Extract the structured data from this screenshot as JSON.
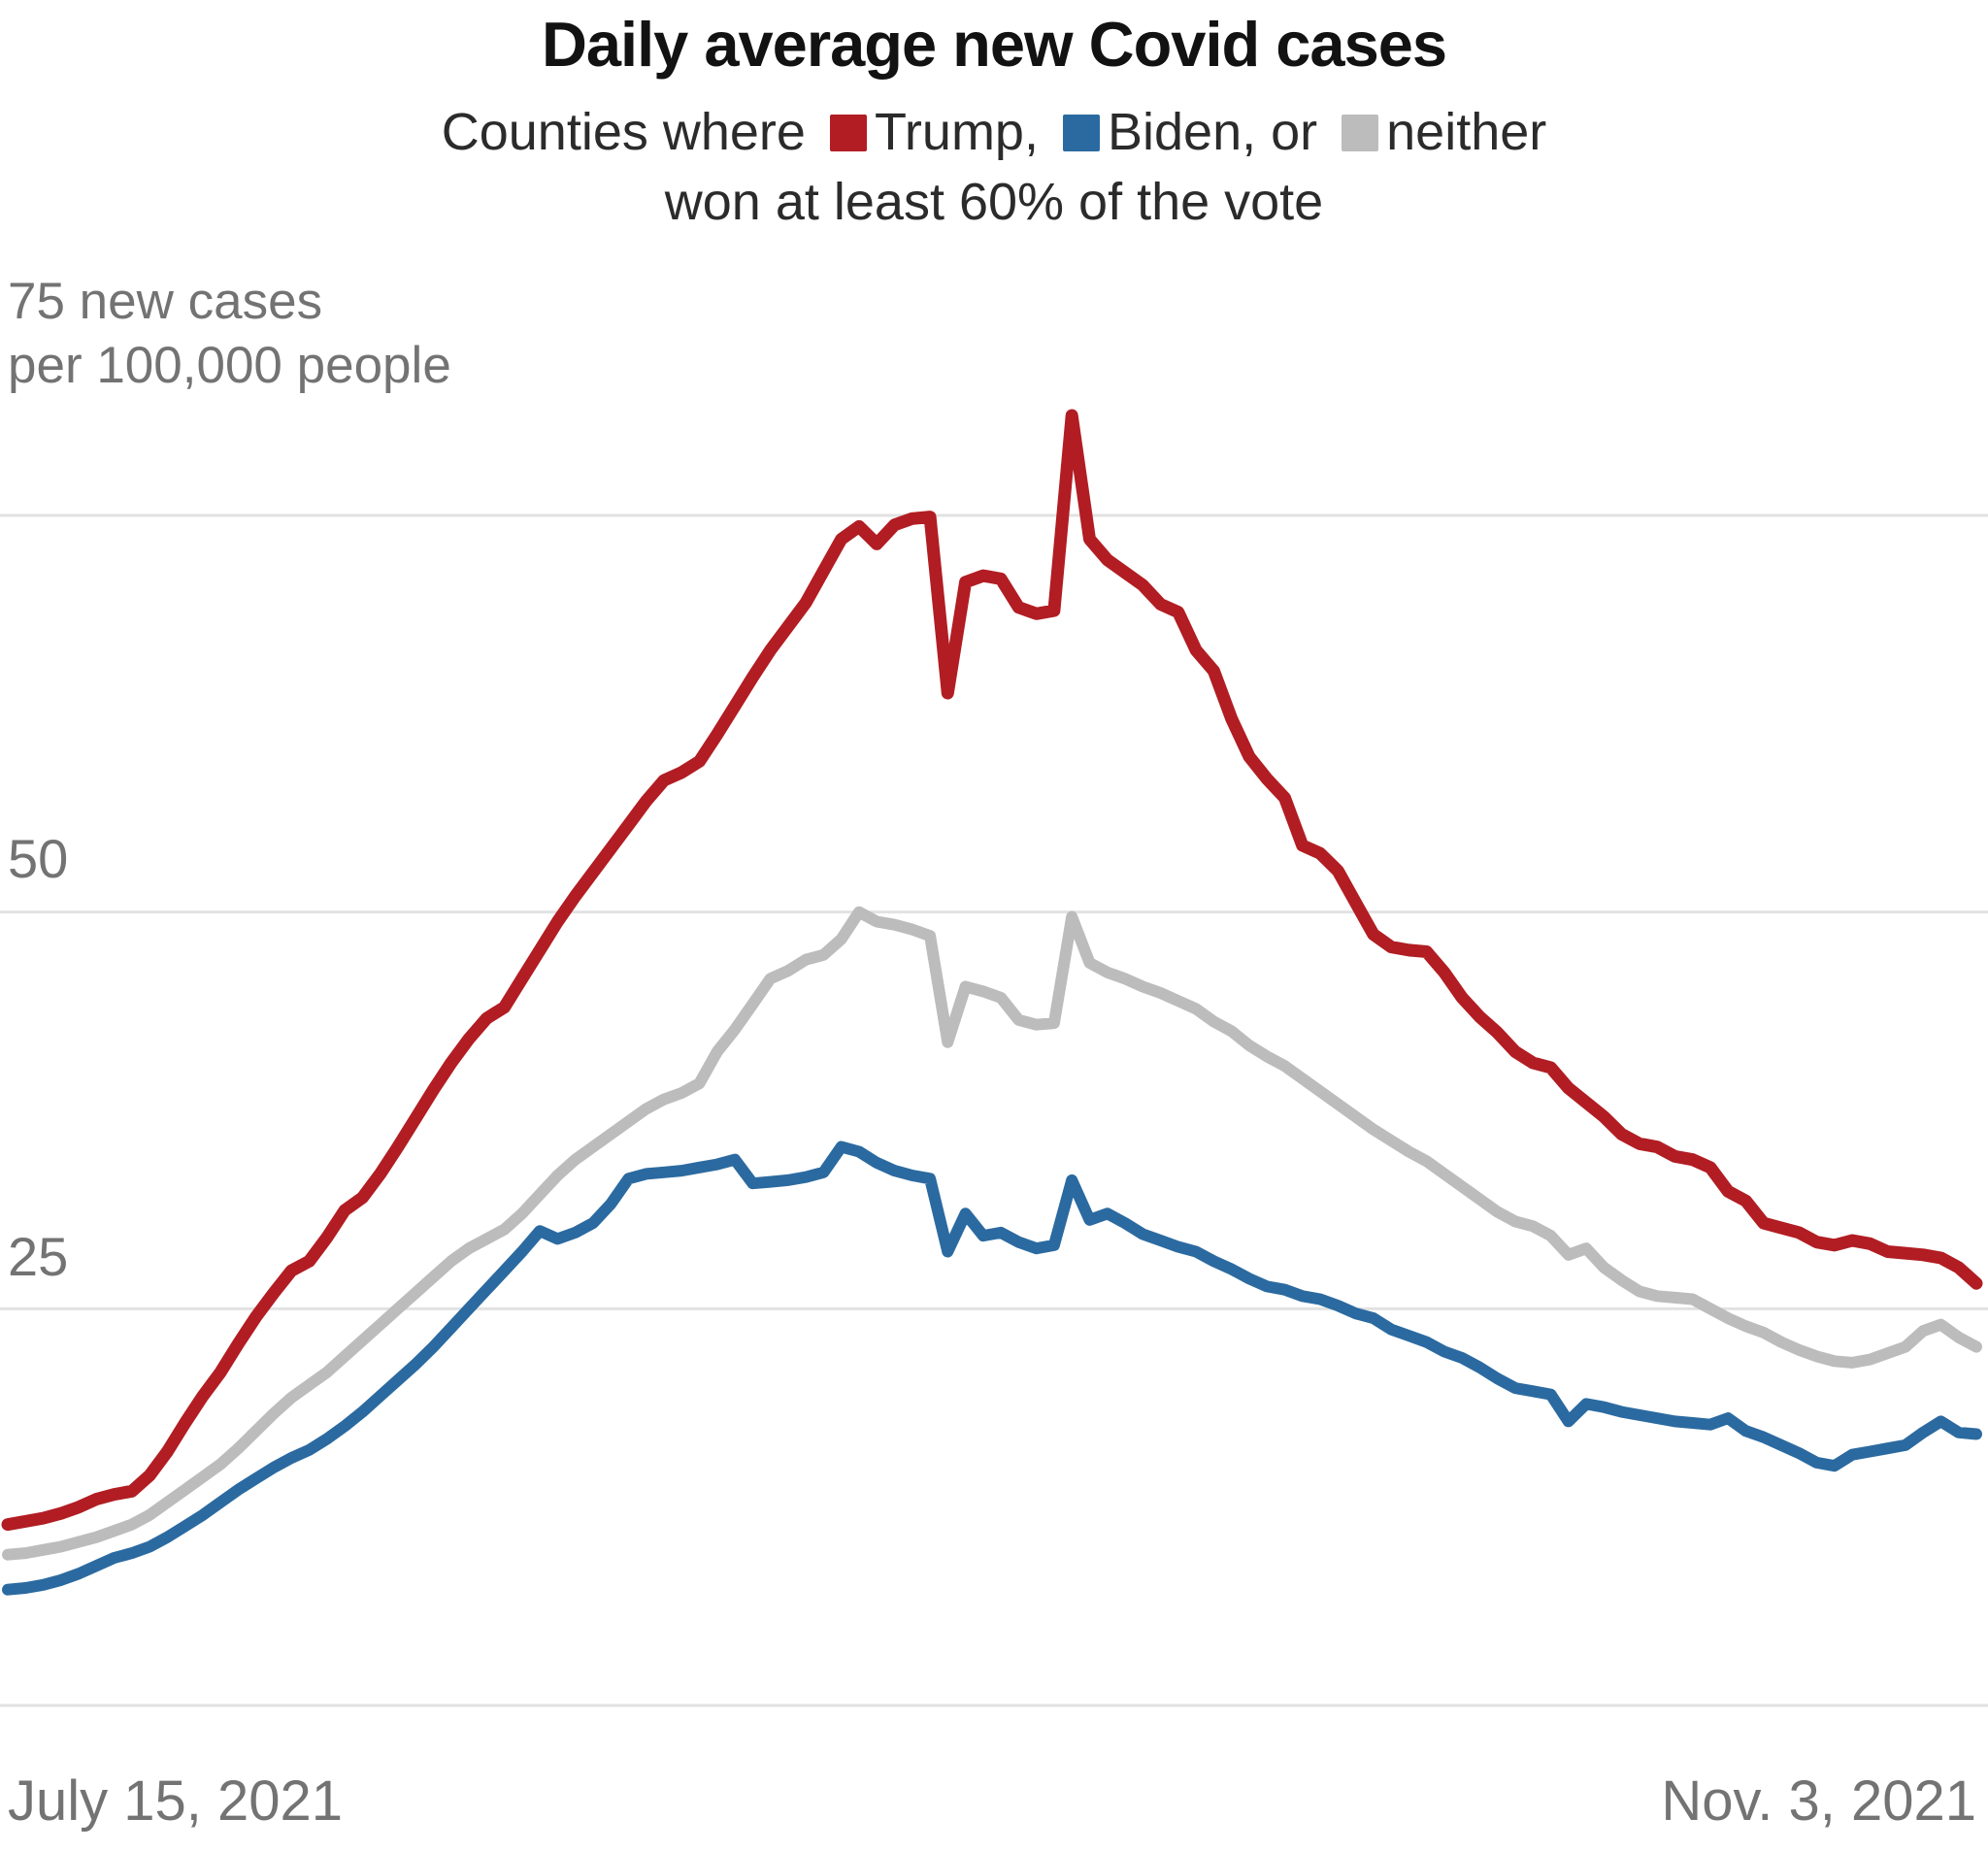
{
  "title": "Daily average new Covid cases",
  "subtitle": {
    "prefix": "Counties where",
    "legend": [
      {
        "label": "Trump,",
        "color": "#b11d23"
      },
      {
        "label": "Biden, or",
        "color": "#2b6aa0"
      },
      {
        "label": "neither",
        "color": "#bcbcbc"
      }
    ],
    "line2": "won at least 60% of the vote"
  },
  "y_axis": {
    "top_label_line1": "75 new cases",
    "top_label_line2": "per 100,000 people",
    "tick_50": "50",
    "tick_25": "25"
  },
  "x_axis": {
    "start_label": "July 15, 2021",
    "end_label": "Nov. 3, 2021"
  },
  "chart_data": {
    "type": "line",
    "title": "Daily average new Covid cases",
    "subtitle": "Counties where Trump, Biden, or neither won at least 60% of the vote",
    "unit": "new cases per 100,000 people",
    "x_start": "July 15, 2021",
    "x_end": "Nov. 3, 2021",
    "x_days": 111,
    "ylim": [
      0,
      75
    ],
    "y_gridlines": [
      0,
      25,
      50,
      75
    ],
    "grid_color": "#e2e2e2",
    "label_color": "#737373",
    "legend_position": "in-subtitle",
    "series": [
      {
        "name": "Trump",
        "color": "#b11d23",
        "values": [
          11.4,
          11.6,
          11.8,
          12.1,
          12.5,
          13.0,
          13.3,
          13.5,
          14.5,
          16.0,
          17.8,
          19.5,
          21.0,
          22.8,
          24.5,
          26.0,
          27.4,
          28.0,
          29.5,
          31.2,
          32.0,
          33.5,
          35.2,
          37.0,
          38.8,
          40.5,
          42.0,
          43.3,
          44.0,
          45.8,
          47.6,
          49.4,
          51.0,
          52.5,
          54.0,
          55.5,
          57.0,
          58.3,
          58.8,
          59.5,
          61.2,
          63.0,
          64.8,
          66.5,
          68.0,
          69.5,
          71.5,
          73.5,
          74.3,
          73.2,
          74.4,
          74.8,
          74.9,
          63.8,
          70.8,
          71.2,
          71.0,
          69.2,
          68.8,
          69.0,
          81.3,
          73.5,
          72.2,
          71.4,
          70.6,
          69.4,
          68.9,
          66.5,
          65.2,
          62.2,
          59.8,
          58.4,
          57.2,
          54.2,
          53.7,
          52.6,
          50.6,
          48.6,
          47.8,
          47.6,
          47.5,
          46.2,
          44.6,
          43.4,
          42.4,
          41.2,
          40.5,
          40.2,
          38.9,
          38.0,
          37.1,
          36.0,
          35.4,
          35.2,
          34.6,
          34.4,
          33.9,
          32.4,
          31.8,
          30.4,
          30.1,
          29.8,
          29.2,
          29.0,
          29.3,
          29.1,
          28.6,
          28.5,
          28.4,
          28.2,
          27.6,
          26.6
        ]
      },
      {
        "name": "Biden",
        "color": "#2b6aa0",
        "values": [
          7.3,
          7.4,
          7.6,
          7.9,
          8.3,
          8.8,
          9.3,
          9.6,
          10.0,
          10.6,
          11.3,
          12.0,
          12.8,
          13.6,
          14.3,
          15.0,
          15.6,
          16.1,
          16.8,
          17.6,
          18.5,
          19.5,
          20.5,
          21.5,
          22.6,
          23.8,
          25.0,
          26.2,
          27.4,
          28.6,
          29.9,
          29.4,
          29.8,
          30.4,
          31.6,
          33.2,
          33.5,
          33.6,
          33.7,
          33.9,
          34.1,
          34.4,
          32.9,
          33.0,
          33.1,
          33.3,
          33.6,
          35.2,
          34.9,
          34.2,
          33.7,
          33.4,
          33.2,
          28.6,
          31.0,
          29.6,
          29.8,
          29.2,
          28.8,
          29.0,
          33.1,
          30.6,
          31.0,
          30.4,
          29.7,
          29.3,
          28.9,
          28.6,
          28.0,
          27.5,
          26.9,
          26.4,
          26.2,
          25.8,
          25.6,
          25.2,
          24.7,
          24.4,
          23.7,
          23.3,
          22.9,
          22.3,
          21.9,
          21.3,
          20.6,
          20.0,
          19.8,
          19.6,
          17.9,
          19.0,
          18.8,
          18.5,
          18.3,
          18.1,
          17.9,
          17.8,
          17.7,
          18.1,
          17.3,
          16.9,
          16.4,
          15.9,
          15.3,
          15.1,
          15.8,
          16.0,
          16.2,
          16.4,
          17.2,
          17.9,
          17.2,
          17.1
        ]
      },
      {
        "name": "neither",
        "color": "#bcbcbc",
        "values": [
          9.5,
          9.6,
          9.8,
          10.0,
          10.3,
          10.6,
          11.0,
          11.4,
          12.0,
          12.8,
          13.6,
          14.4,
          15.2,
          16.2,
          17.3,
          18.4,
          19.4,
          20.2,
          21.0,
          22.0,
          23.0,
          24.0,
          25.0,
          26.0,
          27.0,
          28.0,
          28.8,
          29.4,
          30.0,
          31.0,
          32.2,
          33.4,
          34.4,
          35.2,
          36.0,
          36.8,
          37.6,
          38.2,
          38.6,
          39.2,
          41.2,
          42.6,
          44.2,
          45.8,
          46.3,
          47.0,
          47.3,
          48.3,
          50.0,
          49.4,
          49.2,
          48.9,
          48.5,
          41.8,
          45.3,
          45.0,
          44.6,
          43.2,
          42.9,
          43.0,
          49.7,
          46.8,
          46.2,
          45.8,
          45.3,
          44.9,
          44.4,
          43.9,
          43.1,
          42.5,
          41.6,
          40.9,
          40.3,
          39.5,
          38.7,
          37.9,
          37.1,
          36.3,
          35.6,
          34.9,
          34.3,
          33.5,
          32.7,
          31.9,
          31.1,
          30.5,
          30.2,
          29.6,
          28.4,
          28.8,
          27.6,
          26.8,
          26.1,
          25.8,
          25.7,
          25.6,
          25.0,
          24.4,
          23.9,
          23.5,
          22.9,
          22.4,
          22.0,
          21.7,
          21.6,
          21.8,
          22.2,
          22.6,
          23.6,
          24.0,
          23.2,
          22.6
        ]
      }
    ]
  }
}
